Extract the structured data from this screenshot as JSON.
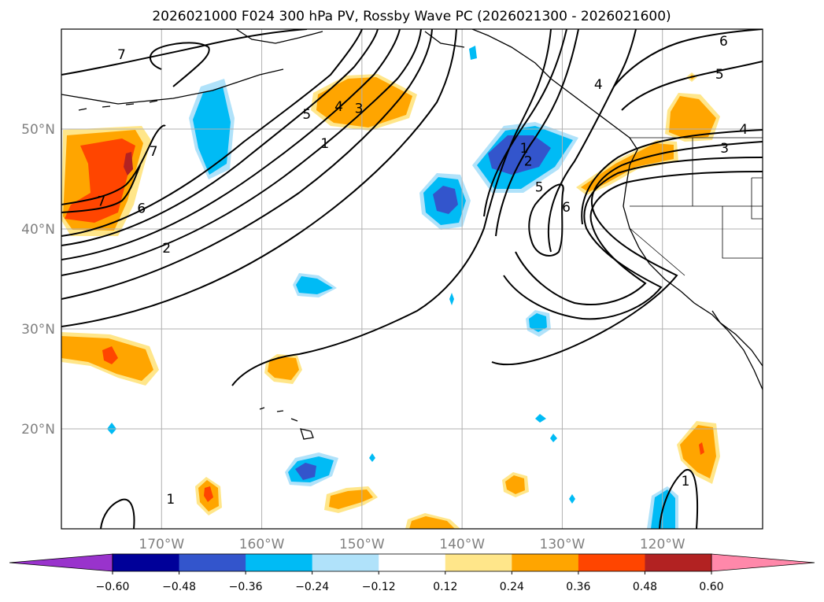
{
  "chart_data": {
    "type": "contour-map",
    "title": "2026021000 F024 300 hPa PV, Rossby Wave PC (2026021300 - 2026021600)",
    "projection": "PlateCarree",
    "xlim": [
      -180,
      -110
    ],
    "ylim": [
      10,
      60
    ],
    "x_ticks": [
      {
        "value": -170,
        "label": "170°W"
      },
      {
        "value": -160,
        "label": "160°W"
      },
      {
        "value": -150,
        "label": "150°W"
      },
      {
        "value": -140,
        "label": "140°W"
      },
      {
        "value": -130,
        "label": "130°W"
      },
      {
        "value": -120,
        "label": "120°W"
      }
    ],
    "y_ticks": [
      {
        "value": 20,
        "label": "20°N"
      },
      {
        "value": 30,
        "label": "30°N"
      },
      {
        "value": 40,
        "label": "40°N"
      },
      {
        "value": 50,
        "label": "50°N"
      }
    ],
    "grid": true,
    "colorbar": {
      "orientation": "horizontal",
      "levels": [
        -0.6,
        -0.48,
        -0.36,
        -0.24,
        -0.12,
        0.12,
        0.24,
        0.36,
        0.48,
        0.6
      ],
      "tick_labels": [
        "−0.60",
        "−0.48",
        "−0.36",
        "−0.24",
        "−0.12",
        "0.12",
        "0.24",
        "0.36",
        "0.48",
        "0.60"
      ],
      "colors": [
        "#9933cc",
        "#000099",
        "#3355cc",
        "#00bbf5",
        "#b0e2fa",
        "#ffffff",
        "#ffe68a",
        "#ffa500",
        "#ff4500",
        "#b22222",
        "#ff88aa"
      ],
      "extend": "both"
    },
    "pv_contour_labels": [
      {
        "text": "7",
        "lon": -174,
        "lat": 57.5
      },
      {
        "text": "5",
        "lon": -155.5,
        "lat": 51.5
      },
      {
        "text": "4",
        "lon": -152.3,
        "lat": 52.3
      },
      {
        "text": "3",
        "lon": -150.3,
        "lat": 52.1
      },
      {
        "text": "1",
        "lon": -153.7,
        "lat": 48.6
      },
      {
        "text": "7",
        "lon": -170.8,
        "lat": 47.8
      },
      {
        "text": "7",
        "lon": -176,
        "lat": 42.8
      },
      {
        "text": "6",
        "lon": -172,
        "lat": 42.1
      },
      {
        "text": "2",
        "lon": -169.5,
        "lat": 38.1
      },
      {
        "text": "1",
        "lon": -133.8,
        "lat": 48.1
      },
      {
        "text": "2",
        "lon": -133.4,
        "lat": 46.8
      },
      {
        "text": "5",
        "lon": -132.3,
        "lat": 44.2
      },
      {
        "text": "6",
        "lon": -129.6,
        "lat": 42.2
      },
      {
        "text": "4",
        "lon": -126.4,
        "lat": 54.5
      },
      {
        "text": "6",
        "lon": -113.9,
        "lat": 58.8
      },
      {
        "text": "5",
        "lon": -114.3,
        "lat": 55.5
      },
      {
        "text": "4",
        "lon": -111.9,
        "lat": 50.0
      },
      {
        "text": "3",
        "lon": -113.8,
        "lat": 48.1
      },
      {
        "text": "1",
        "lon": -169.1,
        "lat": 13.0
      },
      {
        "text": "1",
        "lon": -117.7,
        "lat": 14.8
      }
    ]
  }
}
